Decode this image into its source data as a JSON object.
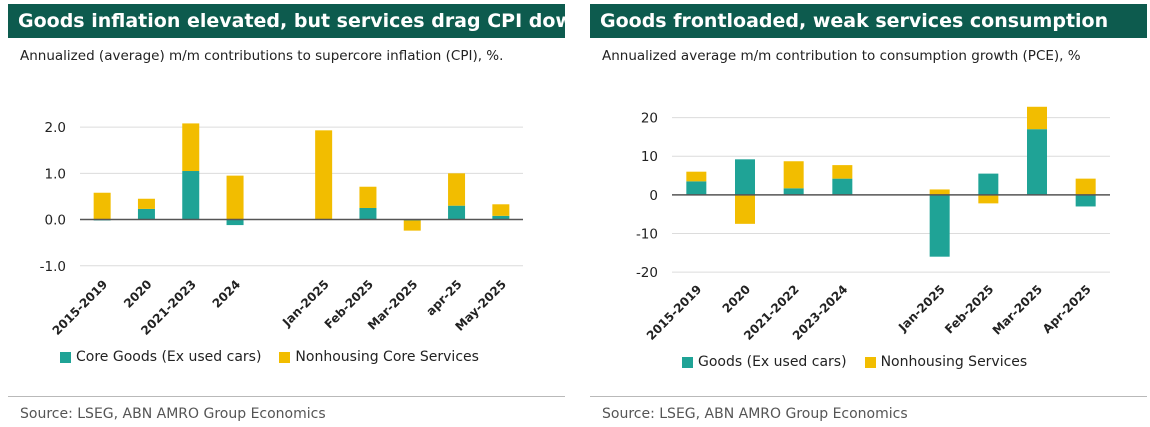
{
  "colors": {
    "goods": "#1fa396",
    "services": "#f2bd00",
    "title_bg": "#0d5b4e",
    "grid": "#dcdcdc"
  },
  "left": {
    "title": "Goods inflation elevated, but services drag CPI down",
    "subtitle": "Annualized (average) m/m contributions to supercore inflation (CPI), %.",
    "legend": [
      "Core Goods (Ex used cars)",
      "Nonhousing Core Services"
    ],
    "source": "Source: LSEG, ABN AMRO Group Economics"
  },
  "right": {
    "title": "Goods frontloaded, weak services consumption",
    "subtitle": "Annualized average m/m contribution to consumption growth (PCE), %",
    "legend": [
      "Goods (Ex used cars)",
      "Nonhousing Services"
    ],
    "source": "Source: LSEG, ABN AMRO Group Economics"
  },
  "chart_data": [
    {
      "type": "bar",
      "stacked": true,
      "title": "Goods inflation elevated, but services drag CPI down",
      "subtitle": "Annualized (average) m/m contributions to supercore inflation (CPI), %.",
      "categories": [
        "2015-2019",
        "2020",
        "2021-2023",
        "2024",
        "",
        "Jan-2025",
        "Feb-2025",
        "Mar-2025",
        "apr-25",
        "May-2025"
      ],
      "series": [
        {
          "name": "Core Goods (Ex used cars)",
          "values": [
            -0.02,
            0.23,
            1.05,
            -0.12,
            null,
            0.0,
            0.25,
            -0.02,
            0.3,
            0.08
          ]
        },
        {
          "name": "Nonhousing Core Services",
          "values": [
            0.58,
            0.22,
            1.03,
            0.95,
            null,
            1.93,
            0.46,
            -0.22,
            0.7,
            0.25
          ]
        }
      ],
      "yticks": [
        -1.0,
        0.0,
        1.0,
        2.0
      ],
      "ytick_labels": [
        "-1.0",
        "0.0",
        "1.0",
        "2.0"
      ],
      "ylim": [
        -1.2,
        2.5
      ],
      "grid": true,
      "legend_position": "bottom"
    },
    {
      "type": "bar",
      "stacked": true,
      "title": "Goods frontloaded, weak services consumption",
      "subtitle": "Annualized average m/m contribution to consumption growth (PCE), %",
      "categories": [
        "2015-2019",
        "2020",
        "2021-2022",
        "2023-2024",
        "",
        "Jan-2025",
        "Feb-2025",
        "Mar-2025",
        "Apr-2025"
      ],
      "series": [
        {
          "name": "Goods (Ex used cars)",
          "values": [
            3.5,
            9.2,
            1.7,
            4.2,
            null,
            -16.0,
            5.5,
            17.0,
            -3.0
          ]
        },
        {
          "name": "Nonhousing Services",
          "values": [
            2.5,
            -7.5,
            7.0,
            3.5,
            null,
            1.4,
            -2.2,
            5.8,
            4.2
          ]
        }
      ],
      "yticks": [
        -20,
        -10,
        0,
        10,
        20
      ],
      "ytick_labels": [
        "-20",
        "-10",
        "0",
        "10",
        "20"
      ],
      "ylim": [
        -21,
        23
      ],
      "grid": true,
      "legend_position": "bottom"
    }
  ]
}
